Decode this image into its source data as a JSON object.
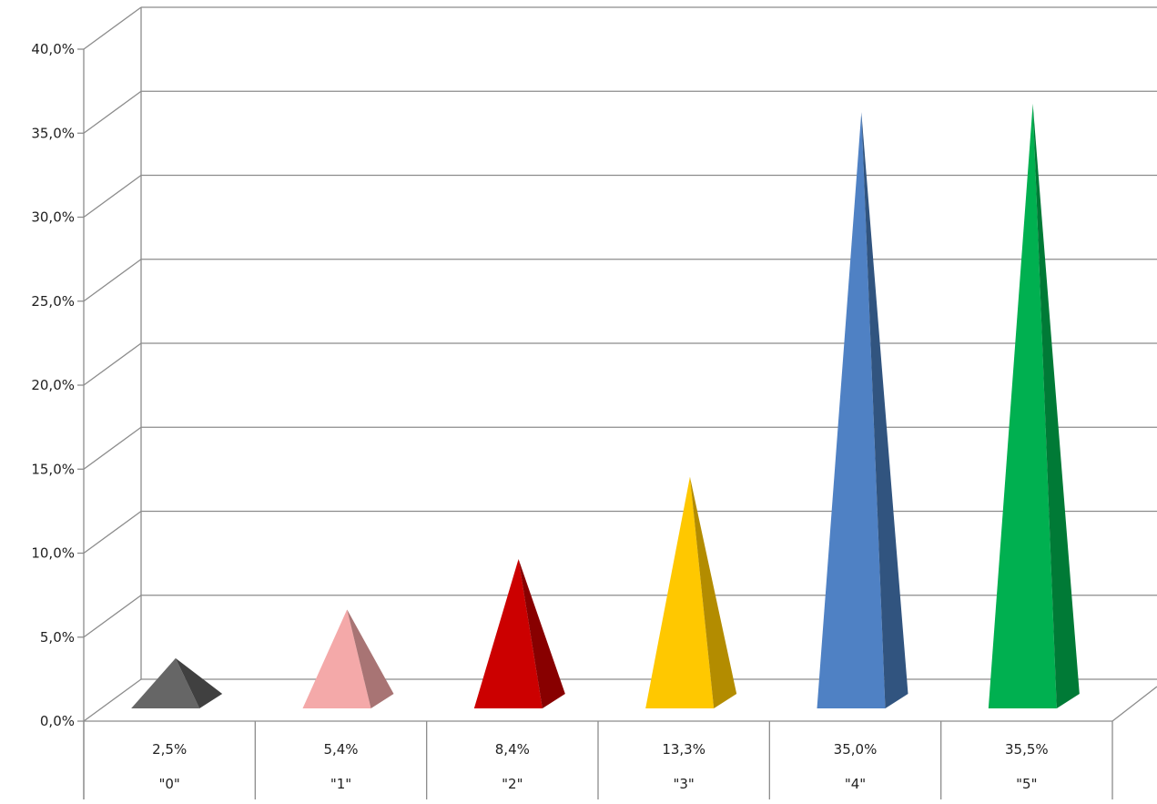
{
  "chart_data": {
    "type": "bar",
    "shape": "pyramid-3d",
    "categories": [
      "\"0\"",
      "\"1\"",
      "\"2\"",
      "\"3\"",
      "\"4\"",
      "\"5\""
    ],
    "values": [
      2.5,
      5.4,
      8.4,
      13.3,
      35.0,
      35.5
    ],
    "data_labels": [
      "2,5%",
      "5,4%",
      "8,4%",
      "13,3%",
      "35,0%",
      "35,5%"
    ],
    "y_ticks": [
      "0,0%",
      "5,0%",
      "10,0%",
      "15,0%",
      "20,0%",
      "25,0%",
      "30,0%",
      "35,0%",
      "40,0%"
    ],
    "ylim": [
      0,
      40
    ],
    "y_step": 5,
    "grid": true,
    "legend": "none",
    "data_table": true,
    "colors": [
      {
        "front": "#666666",
        "side": "#404040"
      },
      {
        "front": "#f4a9a9",
        "side": "#a87474"
      },
      {
        "front": "#cc0000",
        "side": "#880000"
      },
      {
        "front": "#ffc800",
        "side": "#b38c00"
      },
      {
        "front": "#4f81c4",
        "side": "#31547f"
      },
      {
        "front": "#00b050",
        "side": "#007a36"
      }
    ]
  }
}
